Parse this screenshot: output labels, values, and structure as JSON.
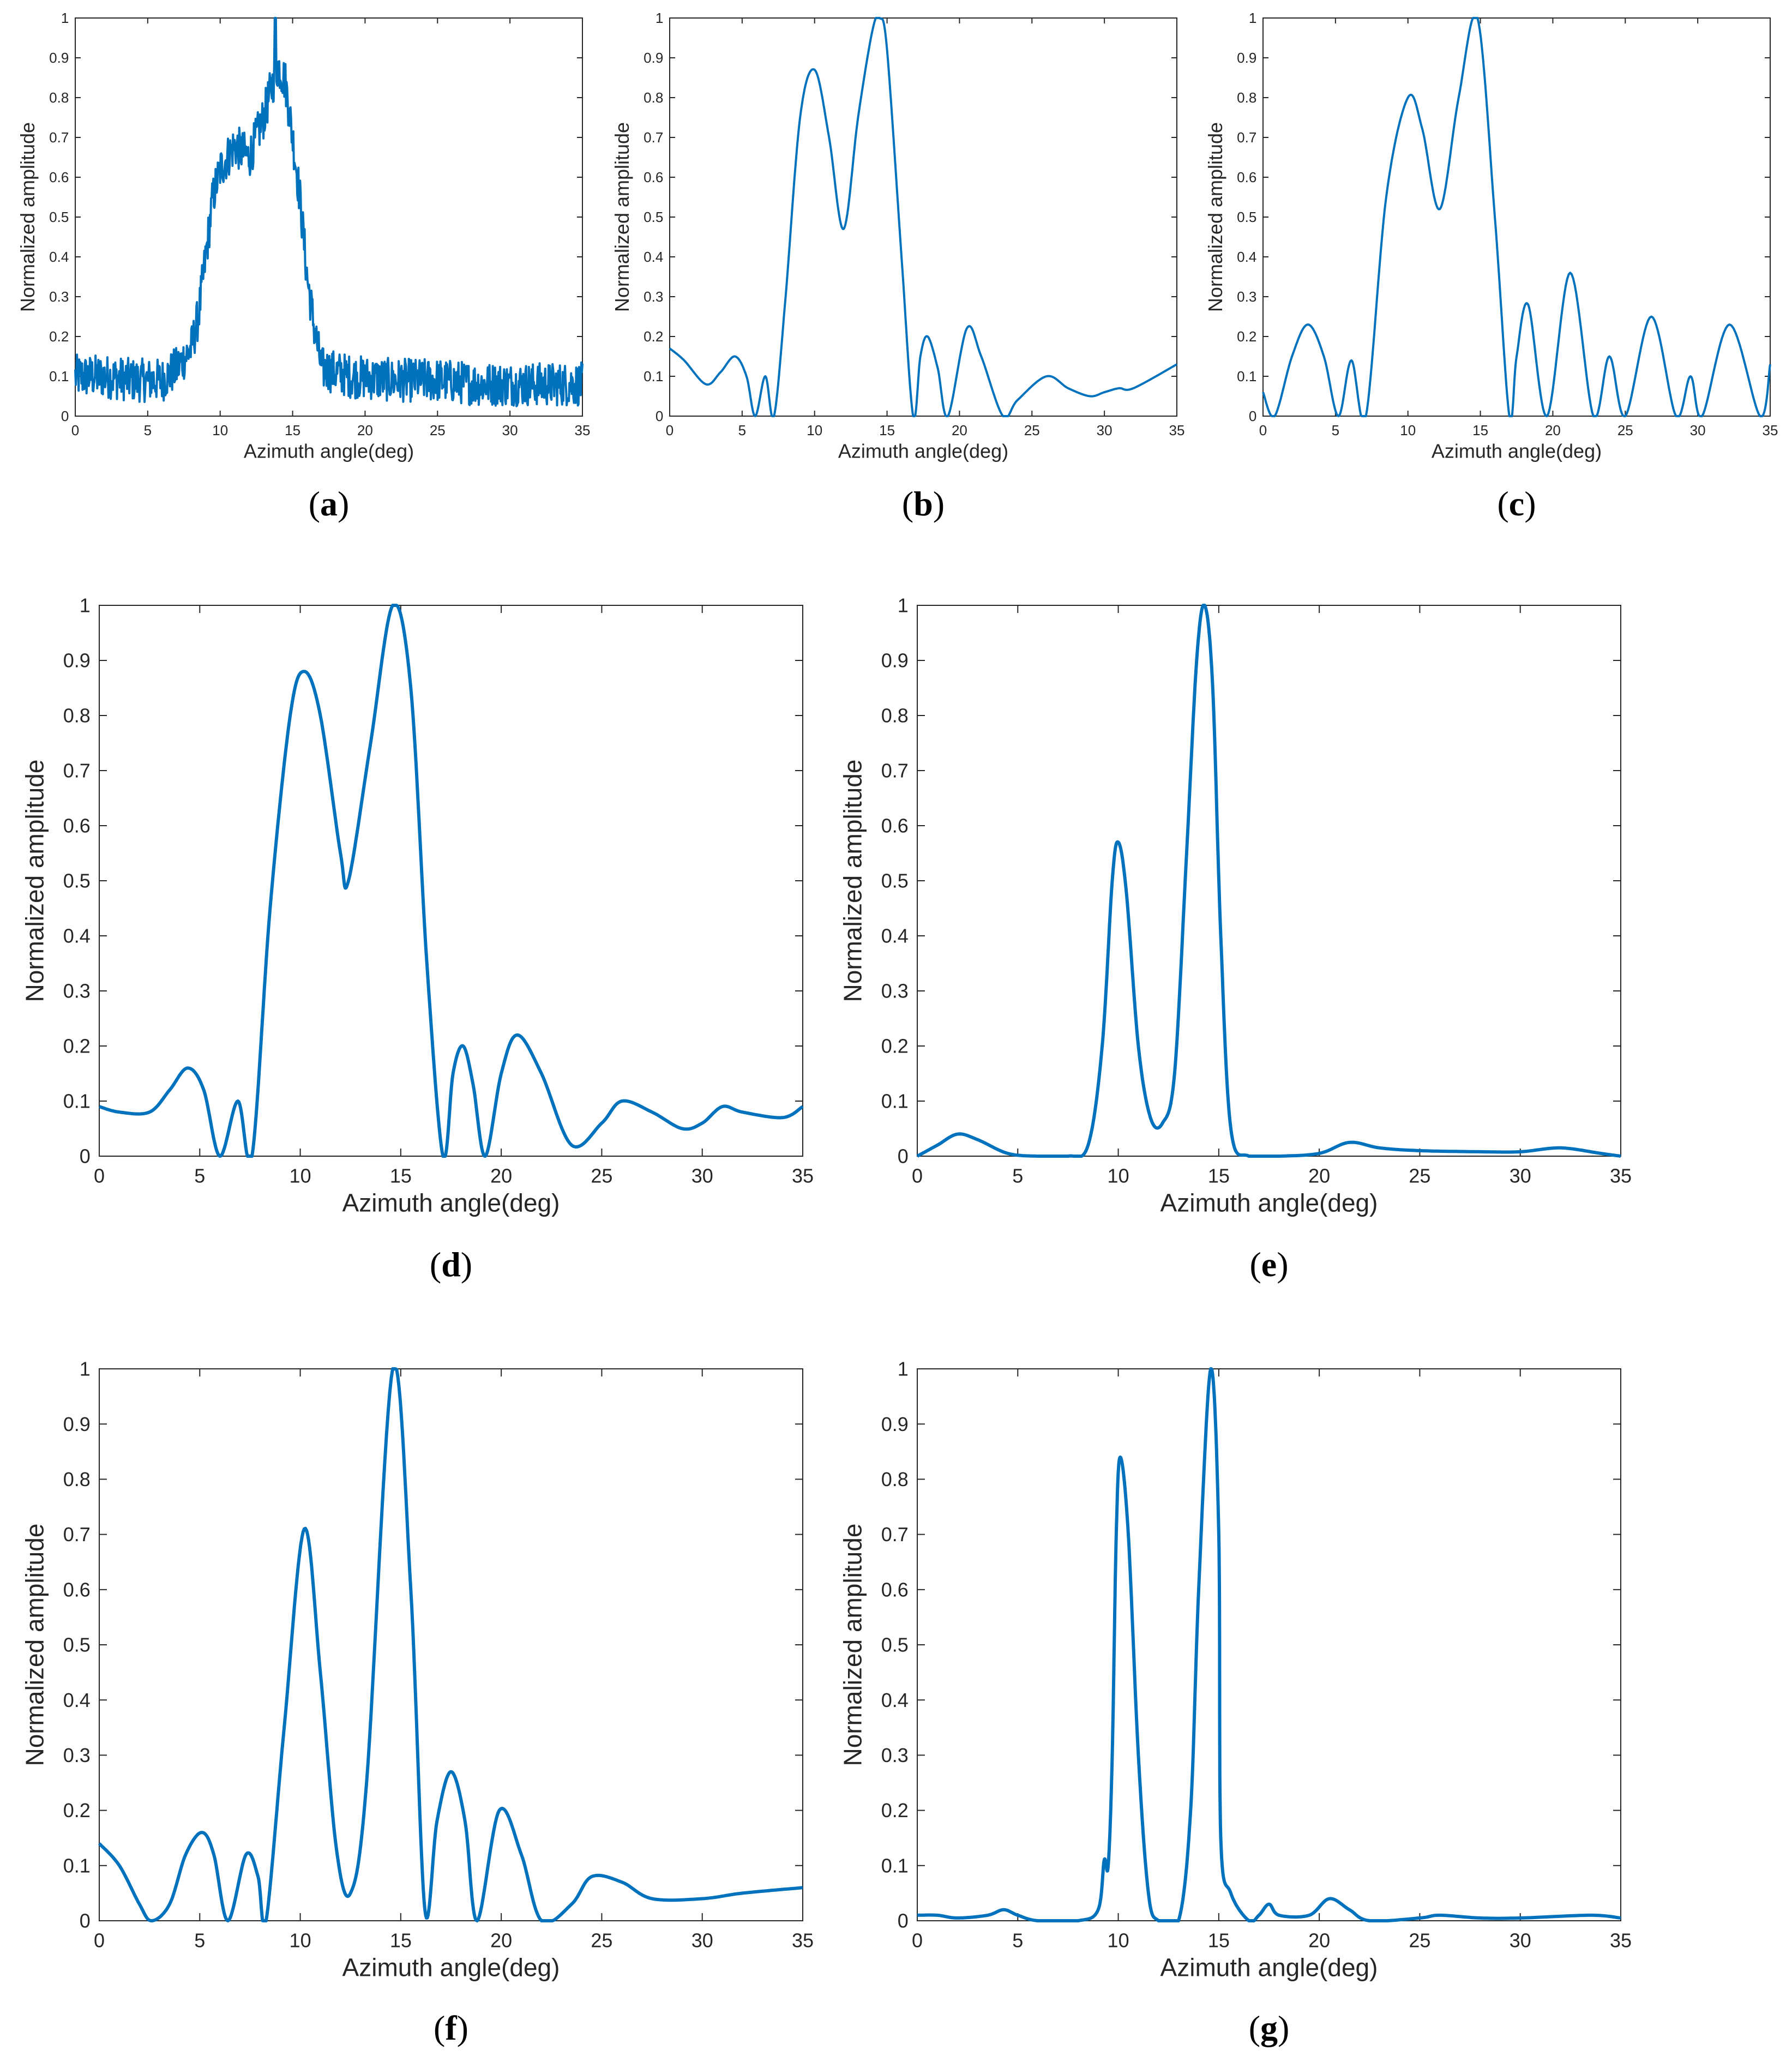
{
  "figure": {
    "line_color": "#0072bd",
    "axis_color": "#262626"
  },
  "chart_data": [
    {
      "id": "a",
      "type": "line",
      "panel_label": "a",
      "xlabel": "Azimuth angle(deg)",
      "ylabel": "Normalized amplitude",
      "xlim": [
        0,
        35
      ],
      "ylim": [
        0,
        1
      ],
      "xticks": [
        "0",
        "5",
        "10",
        "15",
        "20",
        "25",
        "30",
        "35"
      ],
      "yticks": [
        "0",
        "0.1",
        "0.2",
        "0.3",
        "0.4",
        "0.5",
        "0.6",
        "0.7",
        "0.8",
        "0.9",
        "1"
      ],
      "noisy": true,
      "x": [
        0,
        2,
        4,
        6,
        7,
        8,
        8.5,
        9,
        9.5,
        10,
        11,
        12,
        13,
        13.5,
        14,
        14.5,
        15,
        15.5,
        16,
        16.5,
        17,
        19,
        22,
        25,
        28,
        31,
        35
      ],
      "y": [
        0.1,
        0.1,
        0.09,
        0.09,
        0.12,
        0.17,
        0.25,
        0.4,
        0.55,
        0.62,
        0.68,
        0.65,
        0.75,
        0.82,
        0.88,
        0.84,
        0.7,
        0.55,
        0.35,
        0.22,
        0.12,
        0.1,
        0.09,
        0.09,
        0.08,
        0.08,
        0.08
      ]
    },
    {
      "id": "b",
      "type": "line",
      "panel_label": "b",
      "xlabel": "Azimuth angle(deg)",
      "ylabel": "Normalized amplitude",
      "xlim": [
        0,
        35
      ],
      "ylim": [
        0,
        1
      ],
      "xticks": [
        "0",
        "5",
        "10",
        "15",
        "20",
        "25",
        "30",
        "35"
      ],
      "yticks": [
        "0",
        "0.1",
        "0.2",
        "0.3",
        "0.4",
        "0.5",
        "0.6",
        "0.7",
        "0.8",
        "0.9",
        "1"
      ],
      "x": [
        0,
        1,
        2.5,
        3.5,
        4.5,
        5.3,
        5.9,
        6.6,
        7.2,
        8,
        9,
        10,
        11,
        12,
        13,
        14,
        14.5,
        15,
        16,
        16.8,
        17.3,
        17.8,
        18.5,
        19.2,
        20.5,
        21.5,
        23,
        24,
        26,
        27.5,
        29,
        30,
        31,
        32,
        35
      ],
      "y": [
        0.17,
        0.14,
        0.08,
        0.11,
        0.15,
        0.1,
        0,
        0.1,
        0,
        0.3,
        0.75,
        0.87,
        0.7,
        0.47,
        0.75,
        0.97,
        1,
        0.92,
        0.4,
        0,
        0.15,
        0.2,
        0.12,
        0,
        0.22,
        0.15,
        0,
        0.04,
        0.1,
        0.07,
        0.05,
        0.06,
        0.07,
        0.07,
        0.13
      ]
    },
    {
      "id": "c",
      "type": "line",
      "panel_label": "c",
      "xlabel": "Azimuth angle(deg)",
      "ylabel": "Normalized amplitude",
      "xlim": [
        0,
        35
      ],
      "ylim": [
        0,
        1
      ],
      "xticks": [
        "0",
        "5",
        "10",
        "15",
        "20",
        "25",
        "30",
        "35"
      ],
      "yticks": [
        "0",
        "0.1",
        "0.2",
        "0.3",
        "0.4",
        "0.5",
        "0.6",
        "0.7",
        "0.8",
        "0.9",
        "1"
      ],
      "x": [
        0,
        0.8,
        2,
        3.1,
        4.2,
        5.2,
        6.1,
        7.1,
        8.5,
        10,
        11,
        12.2,
        13.5,
        14.8,
        16,
        17,
        17.5,
        18.3,
        19.6,
        21.2,
        22.8,
        23.9,
        25,
        26.8,
        28.5,
        29.5,
        30.3,
        32.2,
        34.3,
        35
      ],
      "y": [
        0.06,
        0,
        0.15,
        0.23,
        0.15,
        0,
        0.14,
        0,
        0.55,
        0.8,
        0.72,
        0.52,
        0.8,
        1,
        0.5,
        0,
        0.15,
        0.28,
        0,
        0.36,
        0,
        0.15,
        0,
        0.25,
        0,
        0.1,
        0,
        0.23,
        0,
        0.13
      ]
    },
    {
      "id": "d",
      "type": "line",
      "panel_label": "d",
      "xlabel": "Azimuth angle(deg)",
      "ylabel": "Normalized amplitude",
      "xlim": [
        0,
        35
      ],
      "ylim": [
        0,
        1
      ],
      "xticks": [
        "0",
        "5",
        "10",
        "15",
        "20",
        "25",
        "30",
        "35"
      ],
      "yticks": [
        "0",
        "0.1",
        "0.2",
        "0.3",
        "0.4",
        "0.5",
        "0.6",
        "0.7",
        "0.8",
        "0.9",
        "1"
      ],
      "x": [
        0,
        1,
        2.5,
        3.5,
        4.4,
        5.2,
        6,
        6.9,
        7.6,
        8.5,
        9.5,
        10.2,
        11,
        12,
        12.4,
        13.5,
        14.6,
        15.5,
        16.3,
        17.1,
        17.6,
        18.1,
        18.6,
        19.2,
        20,
        20.8,
        22,
        23.5,
        25,
        26,
        27.5,
        29,
        30,
        31,
        32,
        34,
        35
      ],
      "y": [
        0.09,
        0.08,
        0.08,
        0.12,
        0.16,
        0.12,
        0,
        0.1,
        0,
        0.45,
        0.8,
        0.88,
        0.8,
        0.55,
        0.5,
        0.75,
        1,
        0.85,
        0.35,
        0,
        0.15,
        0.2,
        0.13,
        0,
        0.15,
        0.22,
        0.15,
        0.02,
        0.06,
        0.1,
        0.08,
        0.05,
        0.06,
        0.09,
        0.08,
        0.07,
        0.09
      ]
    },
    {
      "id": "e",
      "type": "line",
      "panel_label": "e",
      "xlabel": "Azimuth angle(deg)",
      "ylabel": "Normalized amplitude",
      "xlim": [
        0,
        35
      ],
      "ylim": [
        0,
        1
      ],
      "xticks": [
        "0",
        "5",
        "10",
        "15",
        "20",
        "25",
        "30",
        "35"
      ],
      "yticks": [
        "0",
        "0.1",
        "0.2",
        "0.3",
        "0.4",
        "0.5",
        "0.6",
        "0.7",
        "0.8",
        "0.9",
        "1"
      ],
      "x": [
        0,
        1,
        2,
        3,
        4.5,
        6,
        7.5,
        8.5,
        9.2,
        9.7,
        10,
        10.4,
        11,
        11.6,
        12.2,
        12.8,
        13.4,
        13.9,
        14.3,
        14.7,
        15.1,
        15.6,
        16.5,
        18,
        20,
        21.5,
        23,
        25,
        28,
        30,
        32,
        34,
        35
      ],
      "y": [
        0,
        0.02,
        0.04,
        0.03,
        0.005,
        0,
        0,
        0.02,
        0.2,
        0.5,
        0.57,
        0.48,
        0.2,
        0.07,
        0.06,
        0.15,
        0.55,
        0.9,
        1,
        0.85,
        0.4,
        0.05,
        0,
        0,
        0.005,
        0.025,
        0.015,
        0.01,
        0.008,
        0.008,
        0.015,
        0.005,
        0
      ]
    },
    {
      "id": "f",
      "type": "line",
      "panel_label": "f",
      "xlabel": "Azimuth angle(deg)",
      "ylabel": "Normalized amplitude",
      "xlim": [
        0,
        35
      ],
      "ylim": [
        0,
        1
      ],
      "xticks": [
        "0",
        "5",
        "10",
        "15",
        "20",
        "25",
        "30",
        "35"
      ],
      "yticks": [
        "0",
        "0.1",
        "0.2",
        "0.3",
        "0.4",
        "0.5",
        "0.6",
        "0.7",
        "0.8",
        "0.9",
        "1"
      ],
      "x": [
        0,
        1,
        2,
        2.6,
        3.5,
        4.3,
        5.1,
        5.7,
        6.4,
        7.3,
        7.9,
        8.3,
        9.2,
        10.2,
        11,
        11.8,
        12.5,
        13.3,
        14.6,
        15.5,
        16.2,
        16.8,
        17.5,
        18.2,
        18.8,
        19.9,
        21,
        22,
        23.5,
        24.5,
        26,
        27.5,
        30,
        32,
        35
      ],
      "y": [
        0.14,
        0.1,
        0.03,
        0,
        0.03,
        0.12,
        0.16,
        0.12,
        0,
        0.12,
        0.08,
        0,
        0.35,
        0.71,
        0.45,
        0.13,
        0.05,
        0.25,
        1,
        0.6,
        0.02,
        0.18,
        0.27,
        0.18,
        0,
        0.2,
        0.12,
        0,
        0.03,
        0.08,
        0.07,
        0.04,
        0.04,
        0.05,
        0.06
      ]
    },
    {
      "id": "g",
      "type": "line",
      "panel_label": "g",
      "xlabel": "Azimuth angle(deg)",
      "ylabel": "Normalized amplitude",
      "xlim": [
        0,
        35
      ],
      "ylim": [
        0,
        1
      ],
      "xticks": [
        "0",
        "5",
        "10",
        "15",
        "20",
        "25",
        "30",
        "35"
      ],
      "yticks": [
        "0",
        "0.1",
        "0.2",
        "0.3",
        "0.4",
        "0.5",
        "0.6",
        "0.7",
        "0.8",
        "0.9",
        "1"
      ],
      "x": [
        0,
        1,
        2,
        3.5,
        4.3,
        5,
        6,
        8,
        9,
        9.3,
        9.5,
        9.7,
        9.9,
        10.1,
        10.5,
        11,
        11.5,
        12,
        13,
        13.6,
        14,
        14.6,
        15,
        15.1,
        15.6,
        16.5,
        17,
        17.5,
        18,
        19.5,
        20.5,
        21.5,
        22.5,
        25,
        26,
        28,
        30,
        33.5,
        35
      ],
      "y": [
        0.01,
        0.01,
        0.005,
        0.01,
        0.02,
        0.01,
        0,
        0,
        0.02,
        0.11,
        0.1,
        0.3,
        0.7,
        0.84,
        0.7,
        0.3,
        0.05,
        0,
        0,
        0.2,
        0.6,
        1,
        0.7,
        0.15,
        0.05,
        0,
        0.01,
        0.03,
        0.01,
        0.01,
        0.04,
        0.02,
        0,
        0.005,
        0.01,
        0.005,
        0.005,
        0.01,
        0.005
      ]
    }
  ]
}
